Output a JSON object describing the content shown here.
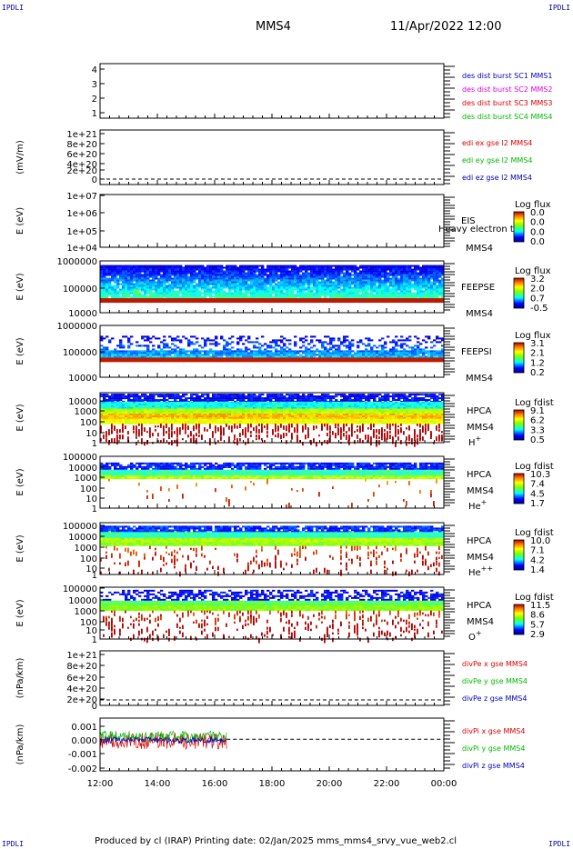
{
  "header": {
    "left_corner": "IPDLI",
    "right_corner": "IPDLI",
    "spacecraft": "MMS4",
    "datetime": "11/Apr/2022 12:00",
    "bottom_left_corner": "IPDLI",
    "bottom_right_corner": "IPDLI"
  },
  "footer": {
    "text": "Produced by cl (IRAP)   Printing date: 02/Jan/2025   mms_mms4_srvy_vue_web2.cl"
  },
  "colors": {
    "blue": "#0000bb",
    "magenta": "#dd00dd",
    "red": "#dd0000",
    "green": "#00bb00"
  },
  "chart_data": {
    "type": "multi-panel-timeseries",
    "x_tick_labels": [
      "12:00",
      "14:00",
      "16:00",
      "18:00",
      "20:00",
      "22:00",
      "00:00"
    ],
    "panels": [
      {
        "id": "burst",
        "type": "line",
        "ylabel": "",
        "ticks": [
          "4",
          "3",
          "2",
          "1"
        ],
        "legend": [
          {
            "text": "des dist burst SC1 MMS1",
            "color": "#0000bb"
          },
          {
            "text": "des dist burst SC2 MMS2",
            "color": "#dd00dd"
          },
          {
            "text": "des dist burst SC3 MMS3",
            "color": "#dd0000"
          },
          {
            "text": "des dist burst SC4 MMS4",
            "color": "#00bb00"
          }
        ]
      },
      {
        "id": "edi",
        "type": "line",
        "ylabel": "(mV/m)",
        "ticks": [
          "1e+21",
          "8e+20",
          "6e+20",
          "4e+20",
          "2e+20",
          "0"
        ],
        "legend": [
          {
            "text": "edi ex gse l2 MMS4",
            "color": "#dd0000"
          },
          {
            "text": "edi ey gse l2 MMS4",
            "color": "#00bb00"
          },
          {
            "text": "edi ez gse l2 MMS4",
            "color": "#0000bb"
          }
        ]
      },
      {
        "id": "eis",
        "type": "heatmap",
        "ylabel": "E (eV)",
        "ticks": [
          "1e+07",
          "1e+06",
          "1e+05",
          "1e+04"
        ],
        "instrument": "EIS",
        "sc": "MMS4",
        "overlay": "Heavy electron to",
        "cbar_title": "Log flux",
        "cbar_ticks": [
          "0.0",
          "0.0",
          "0.0",
          "0.0"
        ]
      },
      {
        "id": "feepse",
        "type": "heatmap",
        "ylabel": "E (eV)",
        "ticks": [
          "1000000",
          "100000",
          "10000"
        ],
        "instrument": "FEEPSE",
        "sc": "MMS4",
        "cbar_title": "Log flux",
        "cbar_ticks": [
          "3.2",
          "2.0",
          "0.7",
          "-0.5"
        ]
      },
      {
        "id": "feepsi",
        "type": "heatmap",
        "ylabel": "E (eV)",
        "ticks": [
          "1000000",
          "100000",
          "10000"
        ],
        "instrument": "FEEPSI",
        "sc": "MMS4",
        "cbar_title": "Log flux",
        "cbar_ticks": [
          "3.1",
          "2.1",
          "1.2",
          "0.2"
        ]
      },
      {
        "id": "hpca_h",
        "type": "heatmap",
        "ylabel": "E (eV)",
        "ticks": [
          "10000",
          "1000",
          "100",
          "10",
          "1"
        ],
        "instrument": "HPCA",
        "sc": "MMS4",
        "species": "H",
        "species_sup": "+",
        "cbar_title": "Log fdist",
        "cbar_ticks": [
          "9.1",
          "6.2",
          "3.3",
          "0.5"
        ]
      },
      {
        "id": "hpca_he",
        "type": "heatmap",
        "ylabel": "E (eV)",
        "ticks": [
          "100000",
          "10000",
          "1000",
          "100",
          "10",
          "1"
        ],
        "instrument": "HPCA",
        "sc": "MMS4",
        "species": "He",
        "species_sup": "+",
        "cbar_title": "Log fdist",
        "cbar_ticks": [
          "10.3",
          "7.4",
          "4.5",
          "1.7"
        ]
      },
      {
        "id": "hpca_hepp",
        "type": "heatmap",
        "ylabel": "E (eV)",
        "ticks": [
          "100000",
          "10000",
          "1000",
          "100",
          "10",
          "1"
        ],
        "instrument": "HPCA",
        "sc": "MMS4",
        "species": "He",
        "species_sup": "++",
        "cbar_title": "Log fdist",
        "cbar_ticks": [
          "10.0",
          "7.1",
          "4.2",
          "1.4"
        ]
      },
      {
        "id": "hpca_o",
        "type": "heatmap",
        "ylabel": "E (eV)",
        "ticks": [
          "100000",
          "10000",
          "1000",
          "100",
          "10",
          "1"
        ],
        "instrument": "HPCA",
        "sc": "MMS4",
        "species": "O",
        "species_sup": "+",
        "cbar_title": "Log fdist",
        "cbar_ticks": [
          "11.5",
          "8.6",
          "5.7",
          "2.9"
        ]
      },
      {
        "id": "divpe",
        "type": "line",
        "ylabel": "(nPa/km)",
        "ticks": [
          "1e+21",
          "8e+20",
          "6e+20",
          "4e+20",
          "2e+20",
          "0"
        ],
        "legend": [
          {
            "text": "divPe x gse MMS4",
            "color": "#dd0000"
          },
          {
            "text": "divPe y gse MMS4",
            "color": "#00bb00"
          },
          {
            "text": "divPe z gse MMS4",
            "color": "#0000bb"
          }
        ]
      },
      {
        "id": "divpi",
        "type": "line",
        "ylabel": "(nPa/km)",
        "ticks": [
          "0.001",
          "0.000",
          "-0.001",
          "-0.002"
        ],
        "data_end": "16:25",
        "legend": [
          {
            "text": "divPi x gse MMS4",
            "color": "#dd0000"
          },
          {
            "text": "divPi y gse MMS4",
            "color": "#00bb00"
          },
          {
            "text": "divPi z gse MMS4",
            "color": "#0000bb"
          }
        ]
      }
    ]
  }
}
